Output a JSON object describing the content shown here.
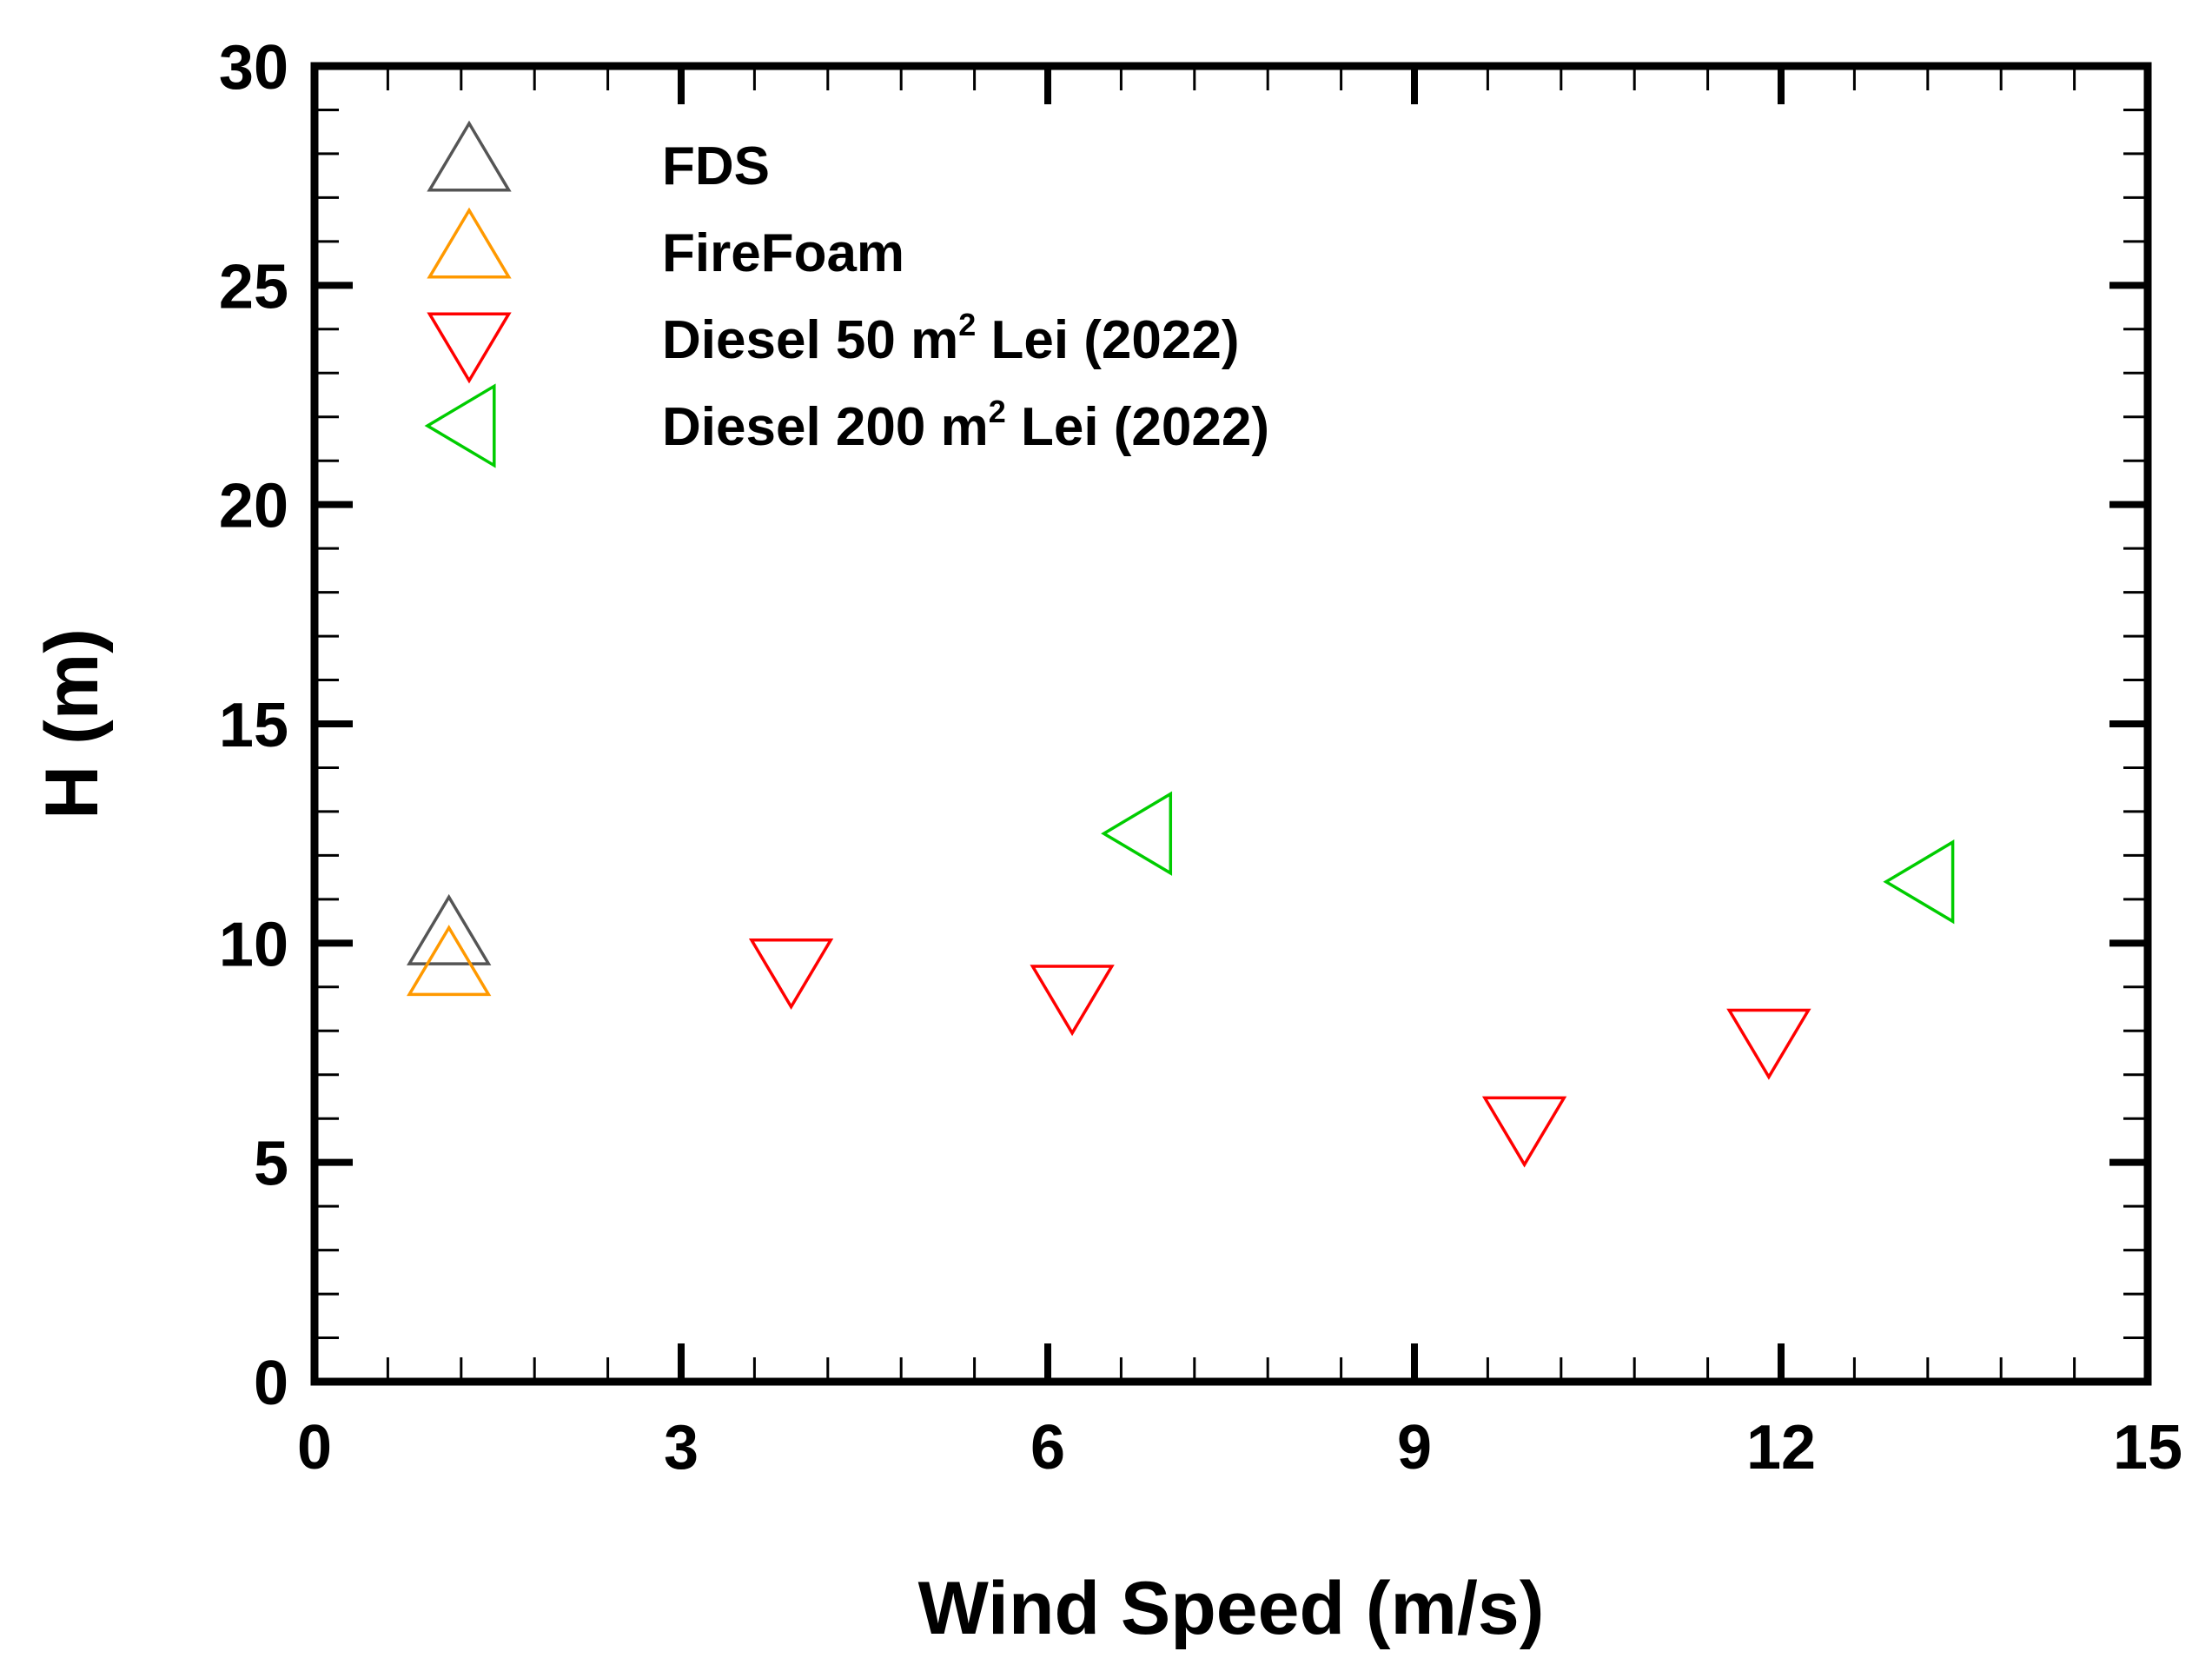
{
  "chart_data": {
    "type": "scatter",
    "title": "",
    "xlabel": "Wind Speed (m/s)",
    "ylabel": "H (m)",
    "xlim": [
      0,
      15
    ],
    "ylim": [
      0,
      30
    ],
    "x_ticks": [
      0,
      3,
      6,
      9,
      12,
      15
    ],
    "y_ticks": [
      0,
      5,
      10,
      15,
      20,
      25,
      30
    ],
    "x_minor_step": 0.6,
    "y_minor_step": 1,
    "grid": false,
    "legend_position": "top-left",
    "series": [
      {
        "name": "FDS",
        "marker": "triangle-up",
        "color": "#555555",
        "points": [
          [
            1.1,
            10.1
          ]
        ]
      },
      {
        "name": "FireFoam",
        "marker": "triangle-up",
        "color": "#ff9900",
        "points": [
          [
            1.1,
            9.4
          ]
        ]
      },
      {
        "name": "Diesel 50 m² Lei (2022)",
        "name_parts": [
          "Diesel 50 m",
          "2",
          " Lei (2022)"
        ],
        "marker": "triangle-down",
        "color": "#ff0000",
        "points": [
          [
            3.9,
            9.5
          ],
          [
            6.2,
            8.9
          ],
          [
            9.9,
            5.9
          ],
          [
            11.9,
            7.9
          ]
        ]
      },
      {
        "name": "Diesel 200 m² Lei (2022)",
        "name_parts": [
          "Diesel 200 m",
          "2",
          " Lei (2022)"
        ],
        "marker": "triangle-left",
        "color": "#00cc00",
        "points": [
          [
            6.8,
            12.5
          ],
          [
            13.2,
            11.4
          ]
        ]
      }
    ]
  }
}
